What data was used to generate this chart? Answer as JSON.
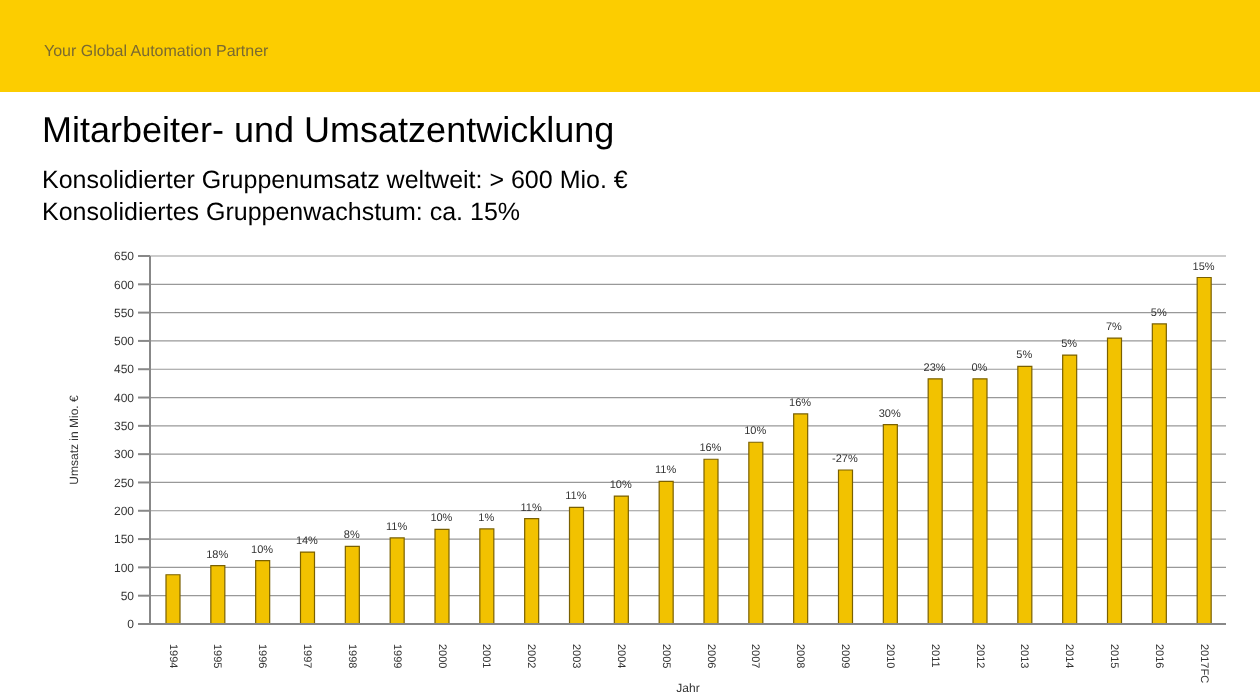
{
  "chart_data": {
    "type": "bar",
    "title": "Mitarbeiter- und Umsatzentwicklung",
    "subtitle": "Konsolidierter Gruppenumsatz weltweit: > 600 Mio. €\nKonsolidiertes Gruppenwachstum: ca. 15%",
    "xlabel": "Jahr",
    "ylabel": "Umsatz in Mio. €",
    "annotations": [
      "Your Global Automation Partner",
      {
        "text": "18%",
        "x": "1995",
        "y": 103
      },
      {
        "text": "10%",
        "x": "1996",
        "y": 112
      },
      {
        "text": "14%",
        "x": "1997",
        "y": 127
      },
      {
        "text": "8%",
        "x": "1998",
        "y": 137
      },
      {
        "text": "11%",
        "x": "1999",
        "y": 152
      },
      {
        "text": "10%",
        "x": "2000",
        "y": 167
      },
      {
        "text": "1%",
        "x": "2001",
        "y": 168
      },
      {
        "text": "11%",
        "x": "2002",
        "y": 186
      },
      {
        "text": "11%",
        "x": "2003",
        "y": 206
      },
      {
        "text": "10%",
        "x": "2004",
        "y": 226
      },
      {
        "text": "11%",
        "x": "2005",
        "y": 252
      },
      {
        "text": "16%",
        "x": "2006",
        "y": 291
      },
      {
        "text": "10%",
        "x": "2007",
        "y": 321
      },
      {
        "text": "16%",
        "x": "2008",
        "y": 371
      },
      {
        "text": "-27%",
        "x": "2009",
        "y": 272
      },
      {
        "text": "30%",
        "x": "2010",
        "y": 352
      },
      {
        "text": "23%",
        "x": "2011",
        "y": 433
      },
      {
        "text": "0%",
        "x": "2012",
        "y": 433
      },
      {
        "text": "5%",
        "x": "2013",
        "y": 455
      },
      {
        "text": "5%",
        "x": "2014",
        "y": 475
      },
      {
        "text": "7%",
        "x": "2015",
        "y": 505
      },
      {
        "text": "5%",
        "x": "2016",
        "y": 530
      },
      {
        "text": "15%",
        "x": "2017FC",
        "y": 612
      }
    ],
    "categories": [
      "1994",
      "1995",
      "1996",
      "1997",
      "1998",
      "1999",
      "2000",
      "2001",
      "2002",
      "2003",
      "2004",
      "2005",
      "2006",
      "2007",
      "2008",
      "2009",
      "2010",
      "2011",
      "2012",
      "2013",
      "2014",
      "2015",
      "2016",
      "2017FC"
    ],
    "values": [
      87,
      103,
      112,
      127,
      137,
      152,
      167,
      168,
      186,
      206,
      226,
      252,
      291,
      321,
      371,
      272,
      352,
      433,
      433,
      455,
      475,
      505,
      530,
      612
    ],
    "color": "#f2c200",
    "ylim": [
      0,
      650
    ],
    "yticks": [
      0,
      50,
      100,
      150,
      200,
      250,
      300,
      350,
      400,
      450,
      500,
      550,
      600,
      650
    ],
    "grid": "y"
  }
}
